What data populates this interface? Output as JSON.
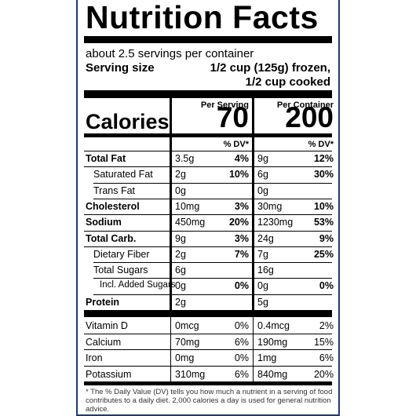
{
  "title": "Nutrition Facts",
  "servings_per_container": "about 2.5 servings per container",
  "serving_size_label": "Serving size",
  "serving_size_value_1": "1/2 cup (125g) frozen,",
  "serving_size_value_2": "1/2 cup cooked",
  "header_per_serving": "Per Serving",
  "header_per_container": "Per Container",
  "calories_label": "Calories",
  "calories_serving": "70",
  "calories_container": "200",
  "dv_label": "% DV*",
  "nutrients": [
    {
      "name": "Total Fat",
      "bold": true,
      "indent": 0,
      "s_amt": "3.5g",
      "s_dv": "4%",
      "c_amt": "9g",
      "c_dv": "12%"
    },
    {
      "name": "Saturated Fat",
      "bold": false,
      "indent": 1,
      "s_amt": "2g",
      "s_dv": "10%",
      "c_amt": "6g",
      "c_dv": "30%"
    },
    {
      "name": "Trans Fat",
      "bold": false,
      "indent": 1,
      "s_amt": "0g",
      "s_dv": "",
      "c_amt": "0g",
      "c_dv": ""
    },
    {
      "name": "Cholesterol",
      "bold": true,
      "indent": 0,
      "s_amt": "10mg",
      "s_dv": "3%",
      "c_amt": "30mg",
      "c_dv": "10%"
    },
    {
      "name": "Sodium",
      "bold": true,
      "indent": 0,
      "s_amt": "450mg",
      "s_dv": "20%",
      "c_amt": "1230mg",
      "c_dv": "53%"
    },
    {
      "name": "Total Carb.",
      "bold": true,
      "indent": 0,
      "s_amt": "9g",
      "s_dv": "3%",
      "c_amt": "24g",
      "c_dv": "9%"
    },
    {
      "name": "Dietary Fiber",
      "bold": false,
      "indent": 1,
      "s_amt": "2g",
      "s_dv": "7%",
      "c_amt": "7g",
      "c_dv": "25%"
    },
    {
      "name": "Total Sugars",
      "bold": false,
      "indent": 1,
      "s_amt": "6g",
      "s_dv": "",
      "c_amt": "16g",
      "c_dv": ""
    },
    {
      "name": "Incl. Added Sugars",
      "bold": false,
      "indent": 2,
      "s_amt": "0g",
      "s_dv": "0%",
      "c_amt": "0g",
      "c_dv": "0%"
    },
    {
      "name": "Protein",
      "bold": true,
      "indent": 0,
      "s_amt": "2g",
      "s_dv": "",
      "c_amt": "5g",
      "c_dv": ""
    }
  ],
  "vitamins": [
    {
      "name": "Vitamin D",
      "s_amt": "0mcg",
      "s_dv": "0%",
      "c_amt": "0.4mcg",
      "c_dv": "2%"
    },
    {
      "name": "Calcium",
      "s_amt": "70mg",
      "s_dv": "6%",
      "c_amt": "190mg",
      "c_dv": "15%"
    },
    {
      "name": "Iron",
      "s_amt": "0mg",
      "s_dv": "0%",
      "c_amt": "1mg",
      "c_dv": "6%"
    },
    {
      "name": "Potassium",
      "s_amt": "310mg",
      "s_dv": "6%",
      "c_amt": "840mg",
      "c_dv": "20%"
    }
  ],
  "footnote": "* The % Daily Value (DV) tells you how much a nutrient in a serving of food contributes to a daily diet. 2,000 calories a day is used for general nutrition advice."
}
